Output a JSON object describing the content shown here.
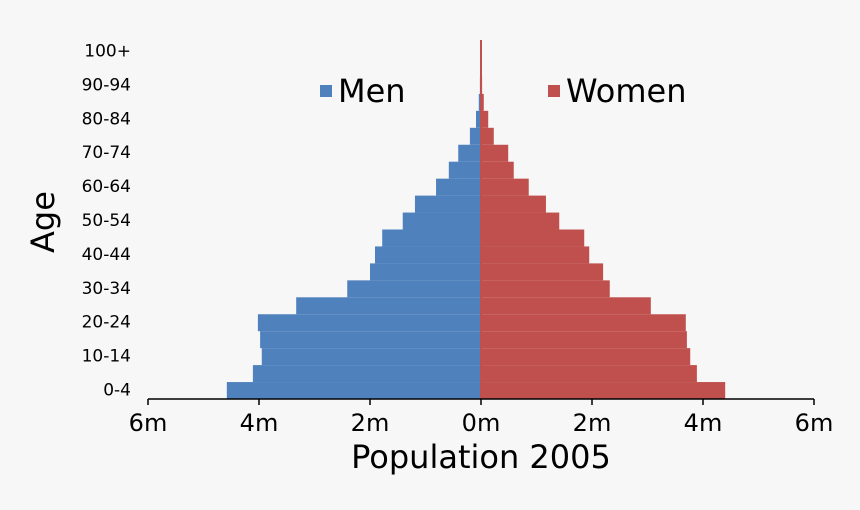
{
  "chart_data": {
    "type": "pyramid",
    "x_label": "Population 2005",
    "y_label": "Age",
    "categories": [
      "0-4",
      null,
      "10-14",
      null,
      "20-24",
      null,
      "30-34",
      null,
      "40-44",
      null,
      "50-54",
      null,
      "60-64",
      null,
      "70-74",
      null,
      "80-84",
      null,
      "90-94",
      null,
      "100+"
    ],
    "series": [
      {
        "name": "Men",
        "color": "#4f81bd",
        "side": "left",
        "values": [
          4.58,
          4.11,
          3.95,
          3.98,
          4.02,
          3.33,
          2.41,
          2.0,
          1.91,
          1.78,
          1.41,
          1.19,
          0.81,
          0.58,
          0.41,
          0.2,
          0.09,
          0.04,
          0.02,
          0.01,
          0.005
        ]
      },
      {
        "name": "Women",
        "color": "#c0504d",
        "side": "right",
        "values": [
          4.4,
          3.89,
          3.77,
          3.71,
          3.69,
          3.06,
          2.32,
          2.2,
          1.95,
          1.86,
          1.41,
          1.17,
          0.86,
          0.59,
          0.49,
          0.23,
          0.13,
          0.05,
          0.02,
          0.01,
          0.005
        ]
      }
    ],
    "xlim": [
      -6,
      6
    ],
    "xticks": [
      {
        "value": -6,
        "label": "6m"
      },
      {
        "value": -4,
        "label": "4m"
      },
      {
        "value": -2,
        "label": "2m"
      },
      {
        "value": 0,
        "label": "0m"
      },
      {
        "value": 2,
        "label": "2m"
      },
      {
        "value": 4,
        "label": "4m"
      },
      {
        "value": 6,
        "label": "6m"
      }
    ]
  }
}
